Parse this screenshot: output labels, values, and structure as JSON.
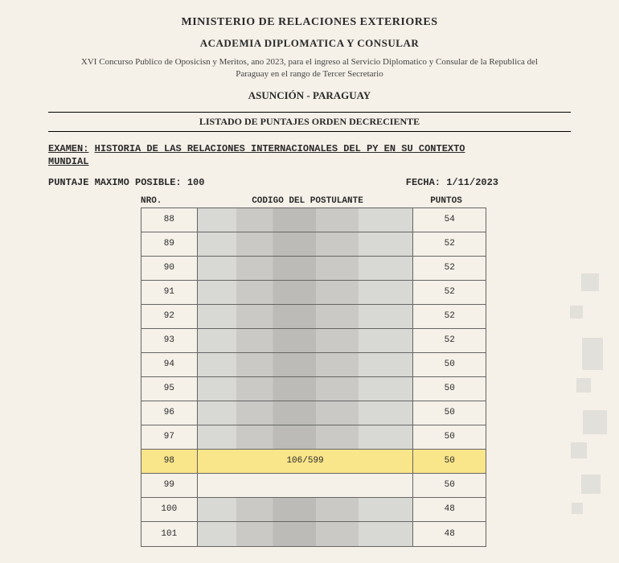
{
  "header": {
    "ministry": "MINISTERIO DE RELACIONES EXTERIORES",
    "academy": "ACADEMIA DIPLOMATICA Y CONSULAR",
    "contest": "XVI Concurso Publico de Oposicisn y Meritos, ano 2023, para el  ingreso al Servicio Diplomatico y Consular de la Republica del Paraguay en el rango de Tercer Secretario",
    "location": "ASUNCIÓN - PARAGUAY",
    "list_title": "LISTADO DE PUNTAJES ORDEN DECRECIENTE"
  },
  "exam": {
    "label": "EXAMEN:",
    "name_line1": "HISTORIA DE LAS RELACIONES INTERNACIONALES DEL PY EN SU CONTEXTO",
    "name_line2": "MUNDIAL"
  },
  "meta": {
    "max_label": "PUNTAJE MAXIMO POSIBLE:",
    "max_value": "100",
    "date_label": "FECHA:",
    "date_value": "1/11/2023"
  },
  "columns": {
    "nro": "NRO.",
    "codigo": "CODIGO DEL POSTULANTE",
    "puntos": "PUNTOS"
  },
  "rows": [
    {
      "nro": "88",
      "codigo": "",
      "puntos": "54",
      "redacted": true,
      "highlight": false
    },
    {
      "nro": "89",
      "codigo": "",
      "puntos": "52",
      "redacted": true,
      "highlight": false
    },
    {
      "nro": "90",
      "codigo": "",
      "puntos": "52",
      "redacted": true,
      "highlight": false
    },
    {
      "nro": "91",
      "codigo": "",
      "puntos": "52",
      "redacted": true,
      "highlight": false
    },
    {
      "nro": "92",
      "codigo": "",
      "puntos": "52",
      "redacted": true,
      "highlight": false
    },
    {
      "nro": "93",
      "codigo": "",
      "puntos": "52",
      "redacted": true,
      "highlight": false
    },
    {
      "nro": "94",
      "codigo": "",
      "puntos": "50",
      "redacted": true,
      "highlight": false
    },
    {
      "nro": "95",
      "codigo": "",
      "puntos": "50",
      "redacted": true,
      "highlight": false
    },
    {
      "nro": "96",
      "codigo": "",
      "puntos": "50",
      "redacted": true,
      "highlight": false
    },
    {
      "nro": "97",
      "codigo": "",
      "puntos": "50",
      "redacted": true,
      "highlight": false
    },
    {
      "nro": "98",
      "codigo": "106/599",
      "puntos": "50",
      "redacted": false,
      "highlight": true
    },
    {
      "nro": "99",
      "codigo": "",
      "puntos": "50",
      "redacted": false,
      "highlight": false
    },
    {
      "nro": "100",
      "codigo": "",
      "puntos": "48",
      "redacted": true,
      "highlight": false
    },
    {
      "nro": "101",
      "codigo": "",
      "puntos": "48",
      "redacted": true,
      "highlight": false
    }
  ],
  "colors": {
    "background": "#f5f0e8",
    "text": "#2a2a2a",
    "highlight": "#f9e58a",
    "border": "#666666",
    "redact_light": "#d8d8d4",
    "redact_mid": "#cac9c5",
    "redact_dark": "#bcbbb7"
  }
}
